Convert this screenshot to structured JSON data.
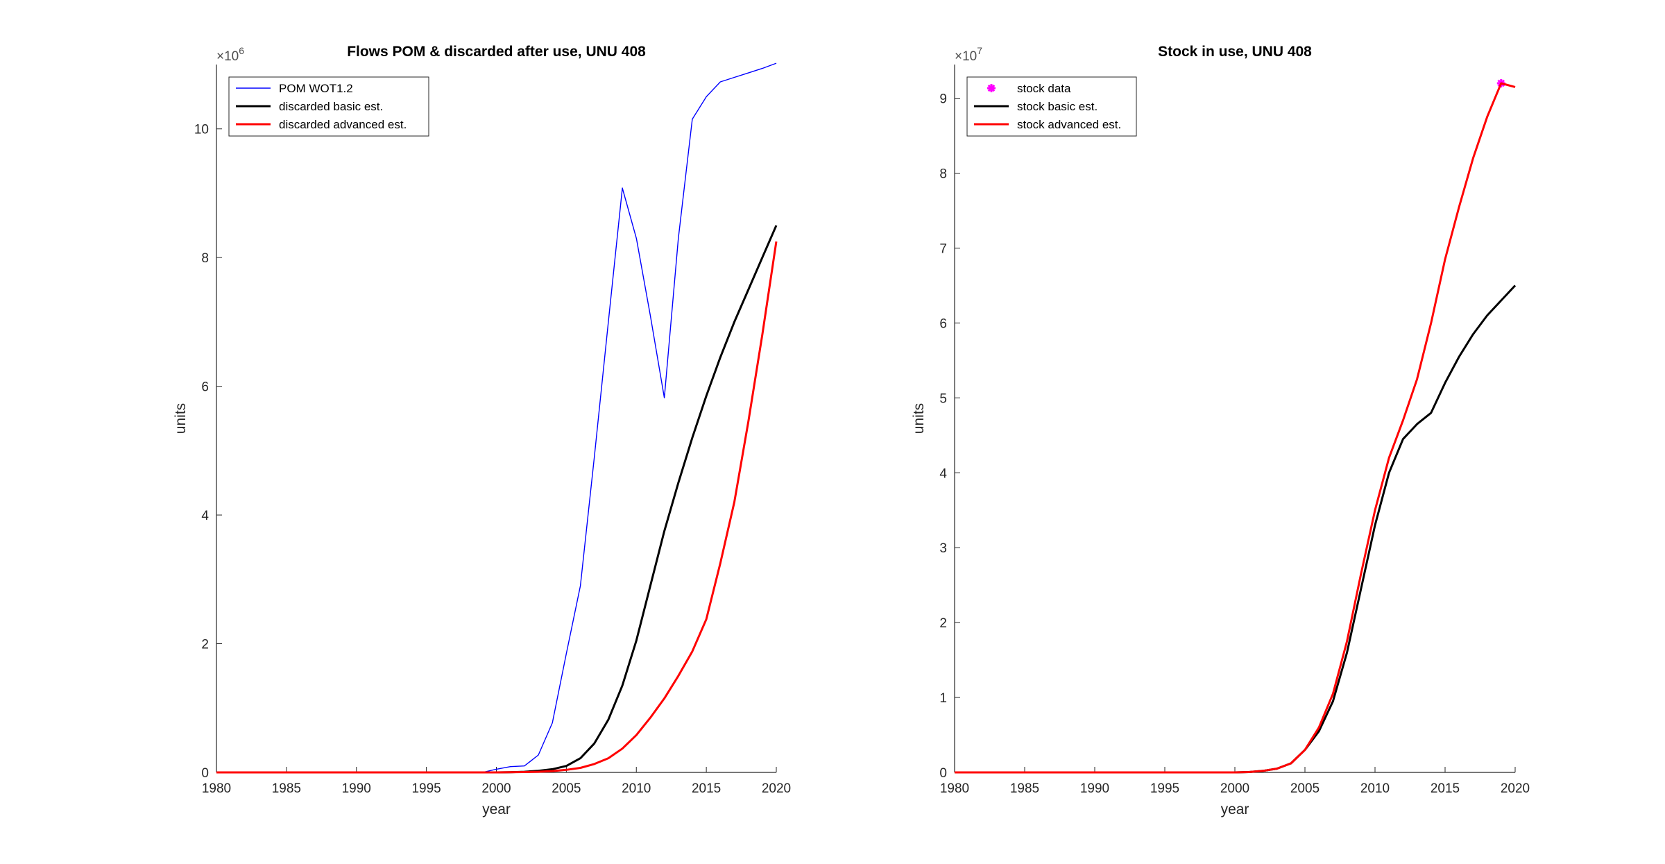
{
  "chart_data": [
    {
      "type": "line",
      "title": "Flows POM & discarded after use, UNU 408",
      "xlabel": "year",
      "ylabel": "units",
      "y_exponent": "6",
      "xlim": [
        1980,
        2020
      ],
      "ylim": [
        0,
        11
      ],
      "xticks": [
        "1980",
        "1985",
        "1990",
        "1995",
        "2000",
        "2005",
        "2010",
        "2015",
        "2020"
      ],
      "yticks": [
        "0",
        "2",
        "4",
        "6",
        "8",
        "10"
      ],
      "legend_position": "top-left",
      "series": [
        {
          "name": "POM WOT1.2",
          "color": "#0000ff",
          "style": "line-thin",
          "x": [
            1980,
            1999,
            2000,
            2001,
            2002,
            2003,
            2004,
            2005,
            2006,
            2007,
            2008,
            2009,
            2010,
            2011,
            2012,
            2013,
            2014,
            2015,
            2016,
            2017,
            2018,
            2019,
            2020
          ],
          "y": [
            0,
            0,
            0.05,
            0.09,
            0.1,
            0.27,
            0.77,
            1.85,
            2.9,
            4.9,
            7.0,
            9.08,
            8.3,
            7.1,
            5.82,
            8.3,
            10.15,
            10.5,
            10.73,
            10.8,
            10.87,
            10.94,
            11.02
          ]
        },
        {
          "name": "discarded basic est.",
          "color": "#000000",
          "style": "line",
          "x": [
            1980,
            2000,
            2001,
            2002,
            2003,
            2004,
            2005,
            2006,
            2007,
            2008,
            2009,
            2010,
            2011,
            2012,
            2013,
            2014,
            2015,
            2016,
            2017,
            2018,
            2019,
            2020
          ],
          "y": [
            0,
            0,
            0.003,
            0.01,
            0.025,
            0.05,
            0.1,
            0.22,
            0.45,
            0.82,
            1.35,
            2.05,
            2.9,
            3.75,
            4.5,
            5.2,
            5.85,
            6.45,
            7.0,
            7.5,
            8.0,
            8.5
          ]
        },
        {
          "name": "discarded advanced est.",
          "color": "#ff0000",
          "style": "line",
          "x": [
            1980,
            2000,
            2001,
            2002,
            2003,
            2004,
            2005,
            2006,
            2007,
            2008,
            2009,
            2010,
            2011,
            2012,
            2013,
            2014,
            2015,
            2016,
            2017,
            2018,
            2019,
            2020
          ],
          "y": [
            0,
            0,
            0.002,
            0.005,
            0.01,
            0.02,
            0.04,
            0.07,
            0.13,
            0.22,
            0.37,
            0.58,
            0.85,
            1.15,
            1.5,
            1.88,
            2.38,
            3.25,
            4.2,
            5.45,
            6.8,
            8.25
          ]
        }
      ]
    },
    {
      "type": "line",
      "title": "Stock in use, UNU 408",
      "xlabel": "year",
      "ylabel": "units",
      "y_exponent": "7",
      "xlim": [
        1980,
        2020
      ],
      "ylim": [
        0,
        9.45
      ],
      "xticks": [
        "1980",
        "1985",
        "1990",
        "1995",
        "2000",
        "2005",
        "2010",
        "2015",
        "2020"
      ],
      "yticks": [
        "0",
        "1",
        "2",
        "3",
        "4",
        "5",
        "6",
        "7",
        "8",
        "9"
      ],
      "legend_position": "top-left",
      "series": [
        {
          "name": "stock data",
          "color": "#ff00ff",
          "style": "marker",
          "x": [
            2019
          ],
          "y": [
            9.2
          ]
        },
        {
          "name": "stock basic est.",
          "color": "#000000",
          "style": "line",
          "x": [
            1980,
            2000,
            2001,
            2002,
            2003,
            2004,
            2005,
            2006,
            2007,
            2008,
            2009,
            2010,
            2011,
            2012,
            2013,
            2014,
            2015,
            2016,
            2017,
            2018,
            2019,
            2020
          ],
          "y": [
            0,
            0,
            0.005,
            0.02,
            0.05,
            0.12,
            0.3,
            0.55,
            0.95,
            1.6,
            2.45,
            3.3,
            4.0,
            4.45,
            4.65,
            4.8,
            5.2,
            5.55,
            5.85,
            6.1,
            6.3,
            6.5
          ]
        },
        {
          "name": "stock advanced est.",
          "color": "#ff0000",
          "style": "line",
          "x": [
            1980,
            2000,
            2001,
            2002,
            2003,
            2004,
            2005,
            2006,
            2007,
            2008,
            2009,
            2010,
            2011,
            2012,
            2013,
            2014,
            2015,
            2016,
            2017,
            2018,
            2019,
            2020
          ],
          "y": [
            0,
            0,
            0.005,
            0.02,
            0.05,
            0.12,
            0.3,
            0.6,
            1.05,
            1.75,
            2.65,
            3.5,
            4.2,
            4.7,
            5.25,
            6.0,
            6.85,
            7.55,
            8.2,
            8.75,
            9.2,
            9.15
          ]
        }
      ]
    }
  ]
}
